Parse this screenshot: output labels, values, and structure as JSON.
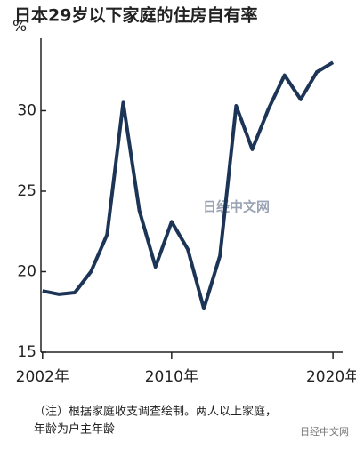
{
  "chart_data": {
    "type": "line",
    "title": "日本29岁以下家庭的住房自有率",
    "y_unit": "%",
    "x": [
      2002,
      2003,
      2004,
      2005,
      2006,
      2007,
      2008,
      2009,
      2010,
      2011,
      2012,
      2013,
      2014,
      2015,
      2016,
      2017,
      2018,
      2019,
      2020
    ],
    "series": [
      {
        "color": "#1c3557",
        "values": [
          18.8,
          18.6,
          18.7,
          20.0,
          22.3,
          30.5,
          23.8,
          20.3,
          23.1,
          21.4,
          17.7,
          21.0,
          30.3,
          27.6,
          30.1,
          32.2,
          30.7,
          32.4,
          33.0
        ]
      }
    ],
    "xlim": [
      2001.9,
      2020.6
    ],
    "xticks": [
      {
        "value": 2002,
        "label": "2002年"
      },
      {
        "value": 2010,
        "label": "2010年"
      },
      {
        "value": 2020,
        "label": "2020年"
      }
    ],
    "ylim": [
      15,
      34.5
    ],
    "yticks": [
      15,
      20,
      25,
      30
    ],
    "grid": false,
    "note": [
      "（注）根据家庭收支调查绘制。两人以上家庭，",
      "年龄为户主年龄"
    ],
    "watermark": "日经中文网"
  }
}
